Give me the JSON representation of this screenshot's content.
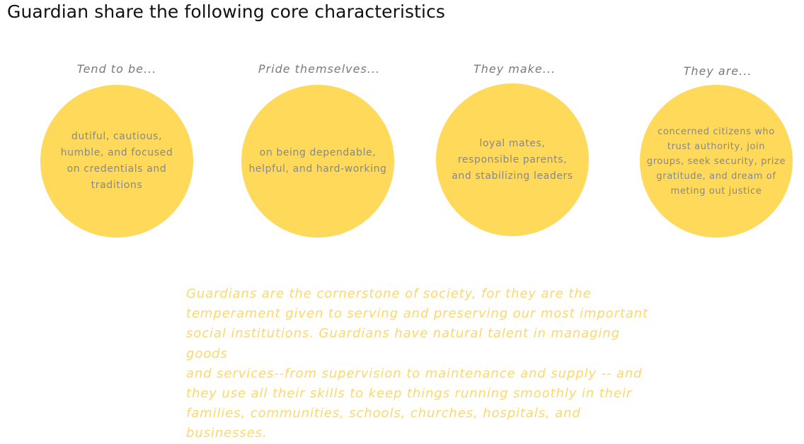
{
  "title": "Guardian share the following core characteristics",
  "characteristics": [
    {
      "heading": "Tend to be...",
      "lines": [
        "dutiful, cautious,",
        "humble, and focused",
        "on credentials and",
        "traditions"
      ]
    },
    {
      "heading": "Pride themselves...",
      "lines": [
        "on being dependable,",
        "helpful, and hard-working"
      ]
    },
    {
      "heading": "They make...",
      "lines": [
        "loyal mates,",
        "responsible parents,",
        "and stabilizing leaders"
      ]
    },
    {
      "heading": "They are...",
      "lines": [
        "concerned citizens who",
        "trust authority, join",
        "groups, seek security, prize",
        "gratitude, and dream of",
        "meting out justice"
      ]
    }
  ],
  "description": {
    "lines": [
      "Guardians are the cornerstone of society, for they are the",
      "temperament given to serving and preserving our most important",
      "social institutions. Guardians have natural talent in managing goods",
      "and services--from supervision to maintenance and supply -- and",
      "they use all their skills to keep things running smoothly in their",
      "families, communities, schools, churches, hospitals, and businesses."
    ]
  },
  "colors": {
    "circle": "#ffd95a",
    "description_text": "#fcd86a",
    "heading_text": "#7a7a7a",
    "circle_text": "#888888"
  }
}
